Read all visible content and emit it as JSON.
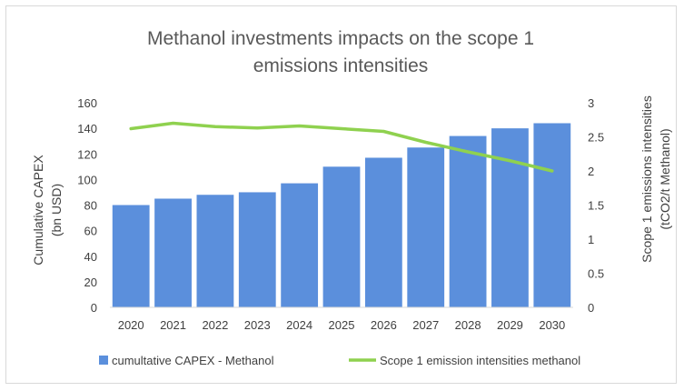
{
  "chart_data": {
    "type": "bar",
    "title_lines": [
      "Methanol investments impacts on the scope 1",
      "emissions intensities"
    ],
    "categories": [
      "2020",
      "2021",
      "2022",
      "2023",
      "2024",
      "2025",
      "2026",
      "2027",
      "2028",
      "2029",
      "2030"
    ],
    "series": [
      {
        "name": "cumultative CAPEX - Methanol",
        "type": "bar",
        "axis": "left",
        "color": "#5b8fdc",
        "values": [
          80,
          85,
          88,
          90,
          97,
          110,
          117,
          125,
          134,
          140,
          144
        ]
      },
      {
        "name": "Scope 1 emission intensities methanol",
        "type": "line",
        "axis": "right",
        "color": "#8fd14f",
        "values": [
          2.62,
          2.7,
          2.65,
          2.63,
          2.66,
          2.62,
          2.58,
          2.42,
          2.28,
          2.15,
          2.0
        ]
      }
    ],
    "y_left": {
      "label_lines": [
        "Cumulative CAPEX",
        "(bn USD)"
      ],
      "ylim": [
        0,
        160
      ],
      "ticks": [
        "0",
        "20",
        "40",
        "60",
        "80",
        "100",
        "120",
        "140",
        "160"
      ]
    },
    "y_right": {
      "label_lines": [
        "Scope 1 emissions intensities",
        "(tCO2/t Methanol)"
      ],
      "ylim": [
        0,
        3
      ],
      "ticks": [
        "0",
        "0.5",
        "1",
        "1.5",
        "2",
        "2.5",
        "3"
      ]
    },
    "grid": false,
    "legend_position": "bottom"
  }
}
